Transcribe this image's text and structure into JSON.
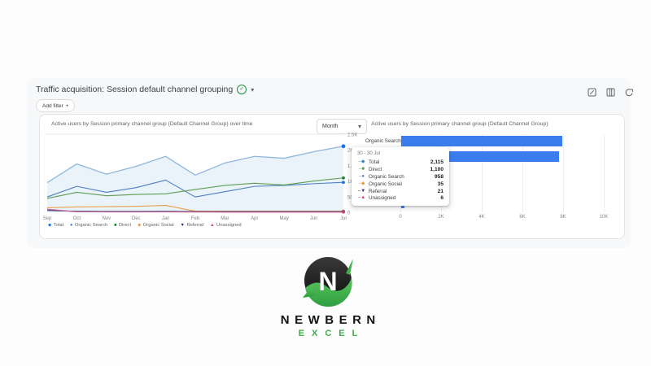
{
  "report": {
    "title": "Traffic acquisition: Session default channel grouping",
    "filter_label": "Add filter",
    "filter_plus": "+",
    "verified_glyph": "✓",
    "caret_glyph": "▾",
    "toolbar_icons": [
      "notes-icon",
      "columns-icon",
      "share-icon"
    ]
  },
  "chart_data": [
    {
      "type": "line",
      "title": "Active users by Session primary channel group (Default Channel Group) over time",
      "interval": "Month",
      "x": [
        "Sep",
        "Oct",
        "Nov",
        "Dec",
        "Jan",
        "Feb",
        "Mar",
        "Apr",
        "May",
        "Jun",
        "Jul"
      ],
      "ylim": [
        0,
        2500
      ],
      "y_ticks": [
        2500,
        2000,
        1500,
        1000,
        500,
        0
      ],
      "y_tick_labels": [
        "2.5K",
        "2K",
        "1.5K",
        "1K",
        "500",
        "0"
      ],
      "grid": "top-line-only",
      "legend_position": "bottom",
      "series": [
        {
          "name": "Total",
          "color": "#8fb8dc",
          "marker": "◆",
          "marker_color": "#1a73e8",
          "area": true,
          "area_color": "#eaf2fa",
          "values": [
            950,
            1550,
            1220,
            1470,
            1790,
            1190,
            1580,
            1790,
            1730,
            1940,
            2115
          ]
        },
        {
          "name": "Organic Search",
          "color": "#4c7fc0",
          "marker": "●",
          "marker_color": "#1a73e8",
          "values": [
            490,
            830,
            640,
            790,
            1030,
            490,
            660,
            830,
            860,
            915,
            958
          ]
        },
        {
          "name": "Direct",
          "color": "#5d9e52",
          "marker": "■",
          "marker_color": "#188038",
          "values": [
            445,
            640,
            530,
            570,
            590,
            730,
            860,
            930,
            875,
            1000,
            1100
          ]
        },
        {
          "name": "Organic Social",
          "color": "#e8a04c",
          "marker": "◆",
          "marker_color": "#e8a04c",
          "values": [
            145,
            170,
            180,
            190,
            220,
            35,
            33,
            33,
            34,
            34,
            35
          ]
        },
        {
          "name": "Referral",
          "color": "#25316d",
          "marker": "▼",
          "marker_color": "#25316d",
          "values": [
            60,
            30,
            25,
            25,
            28,
            22,
            20,
            20,
            21,
            21,
            21
          ]
        },
        {
          "name": "Unassigned",
          "color": "#c95f8f",
          "marker": "▲",
          "marker_color": "#d23f77",
          "values": [
            100,
            15,
            10,
            10,
            12,
            8,
            6,
            6,
            6,
            6,
            6
          ]
        }
      ]
    },
    {
      "type": "bar",
      "title": "Active users by Session primary channel group (Default Channel Group)",
      "categories": [
        "Organic Search",
        "Direct",
        "Organic Social",
        "Referral",
        "Unassigned"
      ],
      "values": [
        7900,
        7750,
        670,
        230,
        170
      ],
      "xlim": [
        0,
        10000
      ],
      "x_ticks": [
        0,
        2000,
        4000,
        6000,
        8000,
        10000
      ],
      "x_tick_labels": [
        "0",
        "2K",
        "4K",
        "6K",
        "8K",
        "10K"
      ],
      "bar_color": "#3b7ded"
    }
  ],
  "tooltip": {
    "header": "30 - 30 Jul",
    "rows": [
      {
        "name": "Total",
        "value": "2,115",
        "color": "#3f8ac7",
        "marker": "◆"
      },
      {
        "name": "Direct",
        "value": "1,100",
        "color": "#5d9e52",
        "marker": "■"
      },
      {
        "name": "Organic Search",
        "value": "958",
        "color": "#4c7fc0",
        "marker": "●"
      },
      {
        "name": "Organic Social",
        "value": "35",
        "color": "#e8a04c",
        "marker": "◆"
      },
      {
        "name": "Referral",
        "value": "21",
        "color": "#25316d",
        "marker": "▼"
      },
      {
        "name": "Unassigned",
        "value": "6",
        "color": "#d23f77",
        "marker": "▲"
      }
    ]
  },
  "logo": {
    "line1": "NEWBERN",
    "line2": "EXCEL",
    "green": "#3fae49",
    "black": "#141414"
  }
}
